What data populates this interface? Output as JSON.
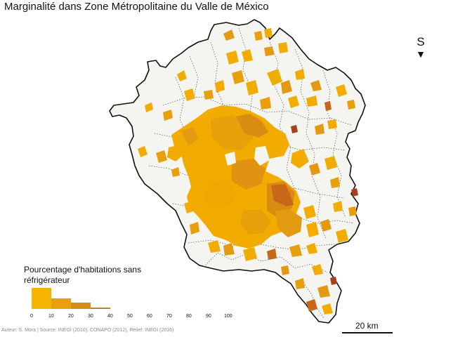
{
  "title": "Marginalité dans Zone Métropolitaine du Valle de México",
  "north": {
    "letter": "S",
    "icon": "north-arrow-triangle"
  },
  "legend": {
    "title": "Pourcentage d'habitations sans réfrigérateur",
    "bins": [
      {
        "from": 0,
        "to": 10,
        "frequency": 1.0,
        "color": "#f5b400"
      },
      {
        "from": 10,
        "to": 20,
        "frequency": 0.5,
        "color": "#e8a010"
      },
      {
        "from": 20,
        "to": 30,
        "frequency": 0.3,
        "color": "#d48e18"
      },
      {
        "from": 30,
        "to": 40,
        "frequency": 0.06,
        "color": "#c07020"
      }
    ],
    "ticks": [
      "0",
      "10",
      "20",
      "30",
      "40",
      "50",
      "60",
      "70",
      "80",
      "90",
      "100"
    ]
  },
  "source": "Auteur: S. Mora | Source: INEGI (2010), CONAPO (2012), Relief: INEGI (2016)",
  "scale": {
    "label": "20 km"
  },
  "colors": {
    "land": "#f4f4f0",
    "boundary": "#111111",
    "municipal_lines": "#444444",
    "low": "#f5b400",
    "mid": "#e39a10",
    "high": "#c8661a",
    "very_high": "#a8401a"
  }
}
